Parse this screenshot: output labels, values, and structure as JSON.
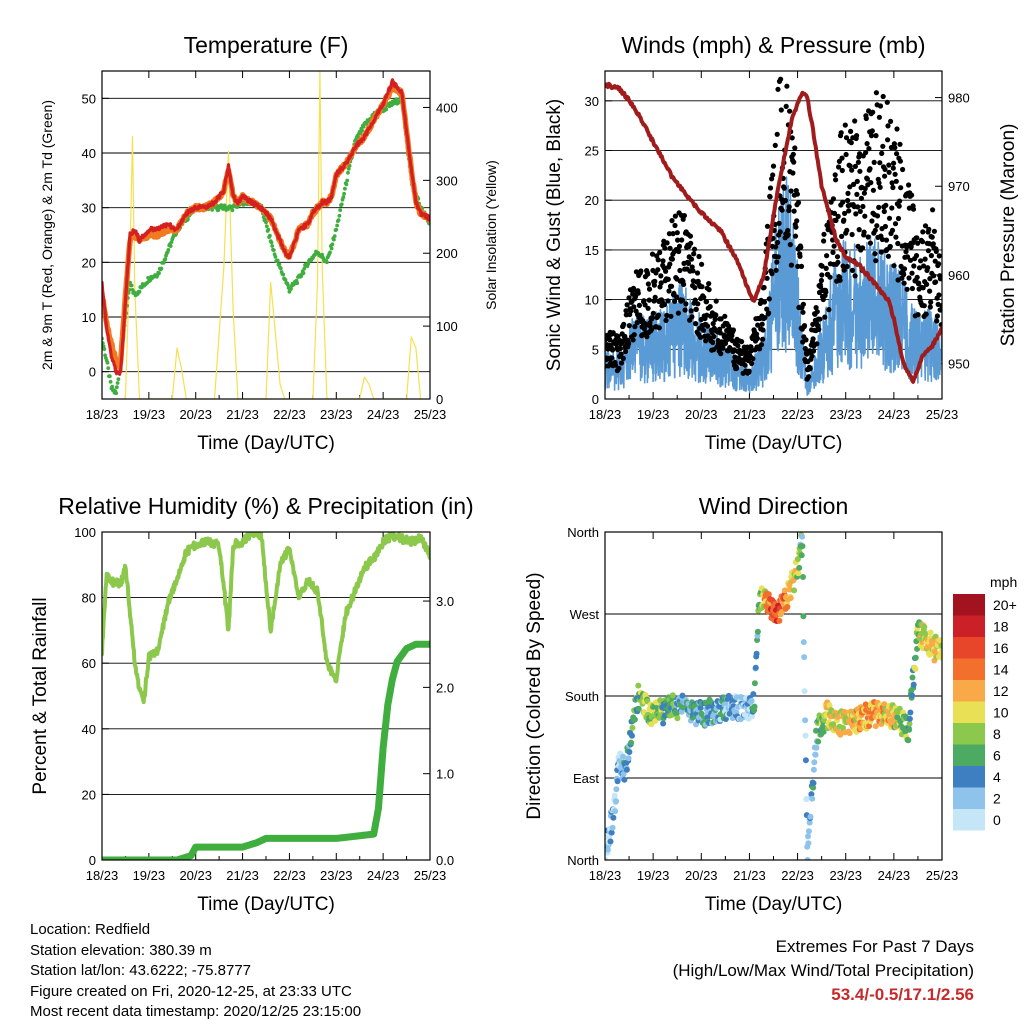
{
  "footer": {
    "location": "Location: Redfield",
    "elevation": "Station elevation: 380.39 m",
    "latlon": "Station lat/lon: 43.6222; -75.8777",
    "created": "Figure created on Fri, 2020-12-25, at 23:33 UTC",
    "recent": "Most recent data timestamp: 2020/12/25 23:15:00",
    "extremes_title": "Extremes For Past 7 Days",
    "extremes_subtitle": "(High/Low/Max Wind/Total Precipitation)",
    "extremes_values": "53.4/-0.5/17.1/2.56"
  },
  "chart_data": [
    {
      "id": "temperature",
      "type": "line",
      "title": "Temperature (F)",
      "xlabel": "Time (Day/UTC)",
      "ylabel": "2m & 9m T (Red, Orange) & 2m Td (Green)",
      "y2label": "Solar Insolation (Yellow)",
      "x_ticks": [
        "18/23",
        "19/23",
        "20/23",
        "21/23",
        "22/23",
        "23/23",
        "24/23",
        "25/23"
      ],
      "xlim": [
        0,
        7
      ],
      "ylim": [
        -5,
        55
      ],
      "y_ticks": [
        0,
        10,
        20,
        30,
        40,
        50
      ],
      "y2lim": [
        0,
        450
      ],
      "y2_ticks": [
        0,
        100,
        200,
        300,
        400
      ],
      "grid": "horizontal",
      "colors": {
        "t2m": "#d42020",
        "t9m": "#f07a20",
        "td": "#3fae3f",
        "solar": "#f5e050"
      },
      "series": [
        {
          "name": "2m T (Red)",
          "axis": "left",
          "x": [
            0,
            0.1,
            0.2,
            0.3,
            0.35,
            0.4,
            0.5,
            0.6,
            0.7,
            0.8,
            1.0,
            1.2,
            1.4,
            1.6,
            1.8,
            2.0,
            2.2,
            2.4,
            2.6,
            2.7,
            2.8,
            2.9,
            3.0,
            3.2,
            3.4,
            3.6,
            3.8,
            3.9,
            4.0,
            4.2,
            4.4,
            4.5,
            4.6,
            4.7,
            4.8,
            4.9,
            5.0,
            5.2,
            5.4,
            5.6,
            5.8,
            6.0,
            6.2,
            6.4,
            6.6,
            6.7,
            6.8,
            7.0
          ],
          "y": [
            16,
            8,
            3,
            0,
            -0.5,
            0,
            13,
            25,
            26,
            24,
            26,
            26,
            27,
            26,
            29,
            30,
            30,
            31,
            33,
            38,
            32,
            31,
            32,
            31,
            30,
            28,
            24,
            22,
            21,
            26,
            27,
            29,
            30,
            31,
            31,
            32,
            36,
            38,
            41,
            43,
            46,
            49,
            53,
            51,
            37,
            31,
            29,
            28
          ]
        },
        {
          "name": "9m T (Orange)",
          "axis": "left",
          "x": [
            0,
            0.1,
            0.2,
            0.3,
            0.35,
            0.4,
            0.5,
            0.6,
            0.7,
            0.8,
            1.0,
            1.2,
            1.4,
            1.6,
            1.8,
            2.0,
            2.2,
            2.4,
            2.6,
            2.7,
            2.8,
            2.9,
            3.0,
            3.2,
            3.4,
            3.6,
            3.8,
            3.9,
            4.0,
            4.2,
            4.4,
            4.5,
            4.6,
            4.7,
            4.8,
            4.9,
            5.0,
            5.2,
            5.4,
            5.6,
            5.8,
            6.0,
            6.2,
            6.4,
            6.6,
            6.7,
            6.8,
            7.0
          ],
          "y": [
            14,
            9,
            5,
            2,
            1,
            2,
            14,
            24,
            25,
            24,
            25,
            25,
            26,
            26,
            29,
            30,
            30,
            31,
            33,
            37,
            32,
            31,
            32,
            31,
            30,
            28,
            24,
            22,
            21,
            26,
            27,
            29,
            30,
            31,
            31,
            32,
            36,
            38,
            41,
            43,
            46,
            49,
            52,
            51,
            37,
            31,
            29,
            28
          ]
        },
        {
          "name": "2m Td (Green)",
          "axis": "left",
          "x": [
            0,
            0.1,
            0.2,
            0.3,
            0.4,
            0.5,
            0.6,
            0.7,
            0.8,
            1.0,
            1.2,
            1.4,
            1.6,
            1.8,
            2.0,
            2.2,
            2.4,
            2.6,
            2.8,
            3.0,
            3.2,
            3.4,
            3.6,
            3.7,
            3.8,
            4.0,
            4.2,
            4.4,
            4.6,
            4.8,
            5.0,
            5.2,
            5.4,
            5.6,
            5.8,
            6.0,
            6.2,
            6.4,
            6.6,
            6.8,
            7.0
          ],
          "y": [
            6,
            2,
            -3,
            -4,
            2,
            10,
            16,
            14,
            15,
            17,
            18,
            22,
            26,
            28,
            30,
            30,
            30,
            30,
            30,
            31,
            31,
            30,
            24,
            21,
            19,
            15,
            17,
            20,
            22,
            20,
            26,
            34,
            42,
            45,
            47,
            48,
            49,
            50,
            35,
            30,
            27
          ]
        },
        {
          "name": "Solar Insolation (Yellow)",
          "axis": "right",
          "x": [
            0.5,
            0.6,
            0.65,
            0.7,
            0.8,
            1.0,
            1.5,
            1.6,
            1.7,
            1.8,
            2.4,
            2.6,
            2.7,
            2.75,
            2.8,
            2.9,
            3.5,
            3.6,
            3.7,
            3.8,
            3.9,
            4.5,
            4.6,
            4.65,
            4.7,
            4.8,
            5.5,
            5.6,
            5.7,
            5.8,
            6.5,
            6.6,
            6.7,
            6.8
          ],
          "y": [
            0,
            200,
            360,
            150,
            0,
            0,
            0,
            70,
            40,
            0,
            0,
            180,
            340,
            220,
            120,
            0,
            0,
            160,
            90,
            20,
            0,
            0,
            160,
            450,
            180,
            0,
            0,
            30,
            20,
            0,
            0,
            85,
            70,
            0
          ]
        }
      ]
    },
    {
      "id": "winds",
      "type": "scatter",
      "title": "Winds (mph) & Pressure (mb)",
      "xlabel": "Time (Day/UTC)",
      "ylabel": "Sonic Wind & Gust (Blue, Black)",
      "y2label": "Station Pressure (Maroon)",
      "x_ticks": [
        "18/23",
        "19/23",
        "20/23",
        "21/23",
        "22/23",
        "23/23",
        "24/23",
        "25/23"
      ],
      "xlim": [
        0,
        7
      ],
      "ylim": [
        0,
        33
      ],
      "y_ticks": [
        0,
        5,
        10,
        15,
        20,
        25,
        30
      ],
      "y2lim": [
        946,
        983
      ],
      "y2_ticks": [
        950,
        960,
        970,
        980
      ],
      "grid": "horizontal",
      "colors": {
        "wind": "#5b9bd5",
        "gust": "#000000",
        "pressure": "#a01c1c"
      },
      "series": [
        {
          "name": "Sonic Wind (Blue)",
          "axis": "left",
          "x": [
            0,
            0.3,
            0.6,
            1.0,
            1.3,
            1.6,
            2.0,
            2.3,
            2.6,
            3.0,
            3.3,
            3.6,
            3.8,
            4.0,
            4.2,
            4.5,
            4.8,
            5.0,
            5.3,
            5.6,
            5.9,
            6.2,
            6.5,
            6.8,
            7.0
          ],
          "y": [
            3,
            3,
            5,
            5,
            6,
            7,
            5,
            4,
            3,
            2,
            4,
            12,
            14,
            8,
            1,
            5,
            9,
            10,
            9,
            10,
            9,
            7,
            5,
            6,
            4
          ]
        },
        {
          "name": "Gust (Black)",
          "axis": "left",
          "x": [
            0,
            0.3,
            0.6,
            1.0,
            1.3,
            1.6,
            2.0,
            2.3,
            2.6,
            3.0,
            3.3,
            3.6,
            3.8,
            4.0,
            4.2,
            4.5,
            4.8,
            5.0,
            5.3,
            5.6,
            5.9,
            6.2,
            6.5,
            6.8,
            7.0
          ],
          "y": [
            6,
            5,
            10,
            12,
            14,
            16,
            11,
            8,
            6,
            4,
            10,
            26,
            28,
            18,
            3,
            12,
            20,
            23,
            22,
            25,
            24,
            20,
            14,
            16,
            10
          ]
        },
        {
          "name": "Station Pressure (Maroon)",
          "axis": "right",
          "x": [
            0,
            0.3,
            0.6,
            1.0,
            1.4,
            2.0,
            2.4,
            2.8,
            3.0,
            3.1,
            3.3,
            3.6,
            3.9,
            4.1,
            4.2,
            4.3,
            4.5,
            4.8,
            5.0,
            5.3,
            5.6,
            5.9,
            6.0,
            6.2,
            6.4,
            6.6,
            6.8,
            7.0
          ],
          "y": [
            981.5,
            981,
            979,
            975,
            971,
            967,
            965,
            961,
            958,
            957,
            960,
            970,
            978,
            980.5,
            980,
            977,
            970,
            964,
            962,
            961,
            959,
            957,
            955,
            950,
            948,
            951,
            952,
            954
          ]
        }
      ]
    },
    {
      "id": "humidity",
      "type": "line",
      "title": "Relative Humidity (%) & Precipitation (in)",
      "xlabel": "Time (Day/UTC)",
      "ylabel": "Percent & Total Rainfall",
      "x_ticks": [
        "18/23",
        "19/23",
        "20/23",
        "21/23",
        "22/23",
        "23/23",
        "24/23",
        "25/23"
      ],
      "xlim": [
        0,
        7
      ],
      "ylim": [
        0,
        100
      ],
      "y_ticks": [
        0,
        20,
        40,
        60,
        80,
        100
      ],
      "y2lim": [
        0,
        3.8
      ],
      "y2_ticks": [
        "0.0",
        "1.0",
        "2.0",
        "3.0"
      ],
      "grid": "horizontal",
      "colors": {
        "rh": "#8cc84b",
        "precip": "#3fae3f"
      },
      "series": [
        {
          "name": "Relative Humidity",
          "axis": "left",
          "x": [
            0,
            0.1,
            0.2,
            0.4,
            0.5,
            0.6,
            0.7,
            0.8,
            0.9,
            1.0,
            1.2,
            1.4,
            1.6,
            1.8,
            2.0,
            2.2,
            2.5,
            2.7,
            2.8,
            3.0,
            3.2,
            3.4,
            3.6,
            3.8,
            4.0,
            4.2,
            4.4,
            4.6,
            4.8,
            5.0,
            5.2,
            5.4,
            5.6,
            5.8,
            6.0,
            6.2,
            6.4,
            6.6,
            6.8,
            7.0
          ],
          "y": [
            64,
            88,
            85,
            84,
            90,
            75,
            60,
            52,
            49,
            62,
            64,
            78,
            86,
            94,
            96,
            97,
            96,
            70,
            96,
            97,
            100,
            99,
            70,
            90,
            95,
            80,
            85,
            82,
            60,
            55,
            75,
            82,
            89,
            92,
            97,
            99,
            98,
            97,
            98,
            93
          ]
        },
        {
          "name": "Total Rainfall",
          "axis": "right",
          "x": [
            0,
            1.0,
            1.6,
            1.9,
            2.0,
            3.0,
            3.3,
            3.5,
            4.0,
            5.0,
            5.8,
            5.9,
            6.0,
            6.1,
            6.2,
            6.3,
            6.5,
            6.7,
            7.0
          ],
          "y": [
            0,
            0,
            0,
            0.05,
            0.15,
            0.15,
            0.2,
            0.25,
            0.25,
            0.25,
            0.3,
            0.6,
            1.3,
            1.8,
            2.1,
            2.3,
            2.45,
            2.5,
            2.5
          ]
        }
      ]
    },
    {
      "id": "direction",
      "type": "scatter",
      "title": "Wind Direction",
      "xlabel": "Time (Day/UTC)",
      "ylabel": "Direction (Colored By Speed)",
      "x_ticks": [
        "18/23",
        "19/23",
        "20/23",
        "21/23",
        "22/23",
        "23/23",
        "24/23",
        "25/23"
      ],
      "xlim": [
        0,
        7
      ],
      "ylim": [
        0,
        360
      ],
      "y_ticks": [
        {
          "v": 0,
          "label": "North"
        },
        {
          "v": 90,
          "label": "East"
        },
        {
          "v": 180,
          "label": "South"
        },
        {
          "v": 270,
          "label": "West"
        },
        {
          "v": 360,
          "label": "North"
        }
      ],
      "grid": "horizontal",
      "legend": {
        "title": "mph",
        "labels": [
          "20+",
          "18",
          "16",
          "14",
          "12",
          "10",
          "8",
          "6",
          "4",
          "2",
          "0"
        ],
        "colors": [
          "#a3121f",
          "#cc2028",
          "#e8462a",
          "#f26f2c",
          "#f9a947",
          "#e9e056",
          "#8cc84b",
          "#4caa62",
          "#3d7fc0",
          "#8ec3ec",
          "#c4e6f7"
        ]
      },
      "series": [
        {
          "name": "Direction",
          "x": [
            0.0,
            0.1,
            0.2,
            0.3,
            0.4,
            0.5,
            0.6,
            0.7,
            0.8,
            1.0,
            1.3,
            1.6,
            2.0,
            2.3,
            2.6,
            3.0,
            3.1,
            3.2,
            3.4,
            3.6,
            3.8,
            4.0,
            4.1,
            4.2,
            4.4,
            4.6,
            4.8,
            5.0,
            5.3,
            5.6,
            6.0,
            6.3,
            6.5,
            6.7,
            6.9
          ],
          "y": [
            10,
            30,
            60,
            110,
            100,
            120,
            160,
            180,
            170,
            160,
            165,
            170,
            160,
            165,
            168,
            165,
            170,
            290,
            280,
            270,
            290,
            320,
            350,
            5,
            140,
            160,
            150,
            150,
            155,
            160,
            160,
            145,
            250,
            240,
            230
          ],
          "speed": [
            2,
            2,
            2,
            2,
            3,
            4,
            6,
            6,
            8,
            8,
            6,
            4,
            4,
            4,
            2,
            2,
            4,
            6,
            14,
            16,
            12,
            8,
            4,
            2,
            4,
            10,
            10,
            10,
            12,
            12,
            10,
            6,
            8,
            10,
            10
          ]
        }
      ]
    }
  ]
}
